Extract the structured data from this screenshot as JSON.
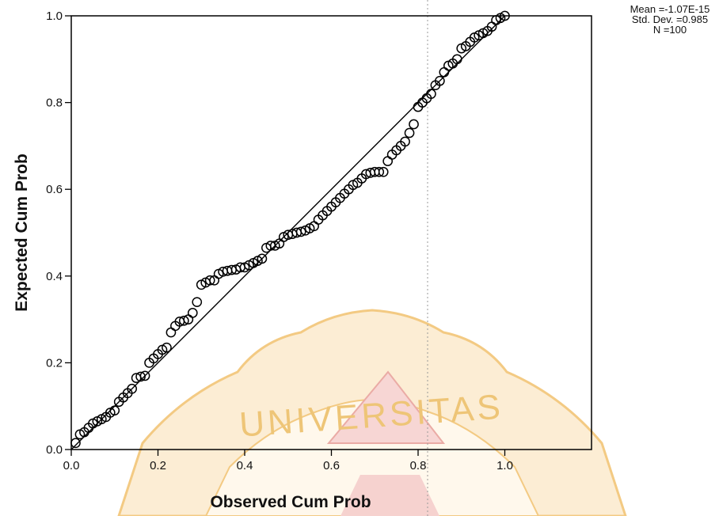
{
  "chart_data": {
    "type": "scatter",
    "title": "",
    "xlabel": "Observed Cum Prob",
    "ylabel": "Expected Cum Prob",
    "xlim": [
      0,
      1.2
    ],
    "ylim": [
      0,
      1
    ],
    "xticks": [
      "0.0",
      "0.2",
      "0.4",
      "0.6",
      "0.8",
      "1.0"
    ],
    "yticks": [
      "0.0",
      "0.2",
      "0.4",
      "0.6",
      "0.8",
      "1.0"
    ],
    "reference_line": {
      "from": [
        0,
        0
      ],
      "to": [
        1,
        1
      ]
    },
    "stats": [
      "Mean =-1.07E-15",
      "Std. Dev. =0.985",
      "N =100"
    ],
    "watermark": "UNIVERSITAS",
    "series": [
      {
        "marker": "open-circle",
        "color": "#000000",
        "x": [
          0.01,
          0.02,
          0.03,
          0.04,
          0.05,
          0.06,
          0.07,
          0.08,
          0.09,
          0.1,
          0.11,
          0.12,
          0.13,
          0.14,
          0.15,
          0.16,
          0.17,
          0.18,
          0.19,
          0.2,
          0.21,
          0.22,
          0.23,
          0.24,
          0.25,
          0.26,
          0.27,
          0.28,
          0.29,
          0.3,
          0.31,
          0.32,
          0.33,
          0.34,
          0.35,
          0.36,
          0.37,
          0.38,
          0.39,
          0.4,
          0.41,
          0.42,
          0.43,
          0.44,
          0.45,
          0.46,
          0.47,
          0.48,
          0.49,
          0.5,
          0.51,
          0.52,
          0.53,
          0.54,
          0.55,
          0.56,
          0.57,
          0.58,
          0.59,
          0.6,
          0.61,
          0.62,
          0.63,
          0.64,
          0.65,
          0.66,
          0.67,
          0.68,
          0.69,
          0.7,
          0.71,
          0.72,
          0.73,
          0.74,
          0.75,
          0.76,
          0.77,
          0.78,
          0.79,
          0.8,
          0.81,
          0.82,
          0.83,
          0.84,
          0.85,
          0.86,
          0.87,
          0.88,
          0.89,
          0.9,
          0.91,
          0.92,
          0.93,
          0.94,
          0.95,
          0.96,
          0.97,
          0.98,
          0.99,
          1.0
        ],
        "y": [
          0.015,
          0.035,
          0.04,
          0.05,
          0.06,
          0.065,
          0.07,
          0.075,
          0.085,
          0.09,
          0.11,
          0.12,
          0.13,
          0.14,
          0.165,
          0.168,
          0.17,
          0.2,
          0.21,
          0.22,
          0.23,
          0.235,
          0.27,
          0.285,
          0.295,
          0.297,
          0.3,
          0.315,
          0.34,
          0.38,
          0.385,
          0.39,
          0.39,
          0.405,
          0.41,
          0.412,
          0.414,
          0.415,
          0.42,
          0.42,
          0.425,
          0.43,
          0.435,
          0.44,
          0.465,
          0.47,
          0.47,
          0.475,
          0.49,
          0.495,
          0.497,
          0.5,
          0.502,
          0.505,
          0.51,
          0.515,
          0.53,
          0.54,
          0.55,
          0.56,
          0.57,
          0.58,
          0.59,
          0.6,
          0.61,
          0.615,
          0.625,
          0.635,
          0.638,
          0.64,
          0.64,
          0.64,
          0.665,
          0.68,
          0.69,
          0.7,
          0.71,
          0.73,
          0.75,
          0.79,
          0.8,
          0.81,
          0.82,
          0.84,
          0.85,
          0.87,
          0.885,
          0.89,
          0.9,
          0.925,
          0.93,
          0.94,
          0.95,
          0.955,
          0.96,
          0.965,
          0.975,
          0.99,
          0.995,
          1.0
        ]
      }
    ]
  }
}
